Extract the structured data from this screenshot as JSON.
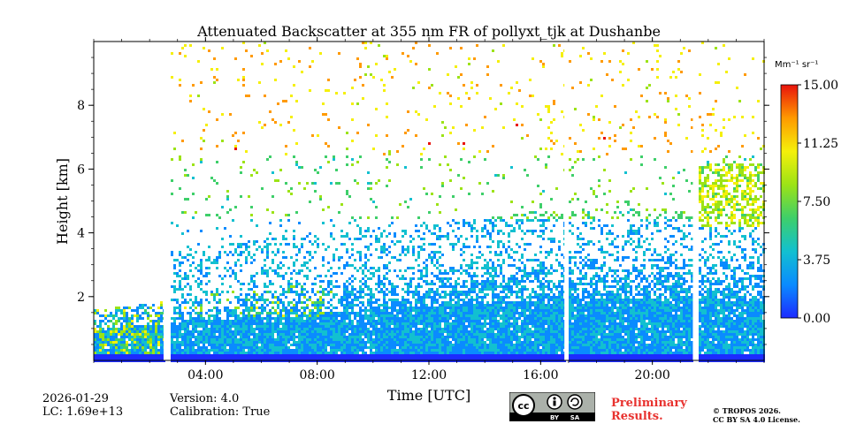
{
  "chart_data": {
    "type": "heatmap",
    "title": "Attenuated Backscatter at 355 nm FR of pollyxt_tjk at Dushanbe",
    "xlabel": "Time [UTC]",
    "ylabel": "Height [km]",
    "x_range_hours": [
      0,
      24
    ],
    "x_tick_values": [
      4,
      8,
      12,
      16,
      20
    ],
    "x_tick_labels": [
      "04:00",
      "08:00",
      "12:00",
      "16:00",
      "20:00"
    ],
    "ylim": [
      0,
      10
    ],
    "y_tick_values": [
      2,
      4,
      6,
      8
    ],
    "y_tick_labels": [
      "2",
      "4",
      "6",
      "8"
    ],
    "colorbar": {
      "unit": "Mm⁻¹ sr⁻¹",
      "range": [
        0,
        15
      ],
      "tick_values": [
        0,
        3.75,
        7.5,
        11.25,
        15
      ],
      "tick_labels": [
        "0.00",
        "3.75",
        "7.50",
        "11.25",
        "15.00"
      ],
      "colors": [
        "#1d2bff",
        "#0a8bff",
        "#12c0d0",
        "#3ecf6a",
        "#9ce316",
        "#f5f00a",
        "#ff9a00",
        "#e8130c"
      ]
    },
    "data_gaps_hours": [
      [
        2.5,
        2.7
      ],
      [
        16.85,
        17.0
      ],
      [
        21.45,
        21.6
      ]
    ],
    "features": [
      {
        "name": "boundary layer",
        "start_h": 0,
        "end_h": 24,
        "top_km": 2.5
      },
      {
        "name": "aerosol/dust layer",
        "start_h": 21.6,
        "end_h": 24,
        "bottom_km": 4.2,
        "top_km": 6.2,
        "value": 9
      }
    ]
  },
  "footer": {
    "date": "2026-01-29",
    "lc": "LC: 1.69e+13",
    "version": "Version: 4.0",
    "calibration": "Calibration: True",
    "preliminary": "Preliminary Results.",
    "copyright_line1": "© TROPOS 2026.",
    "copyright_line2": "CC BY SA 4.0 License.",
    "cc_labels": [
      "cc",
      "BY",
      "SA"
    ]
  }
}
